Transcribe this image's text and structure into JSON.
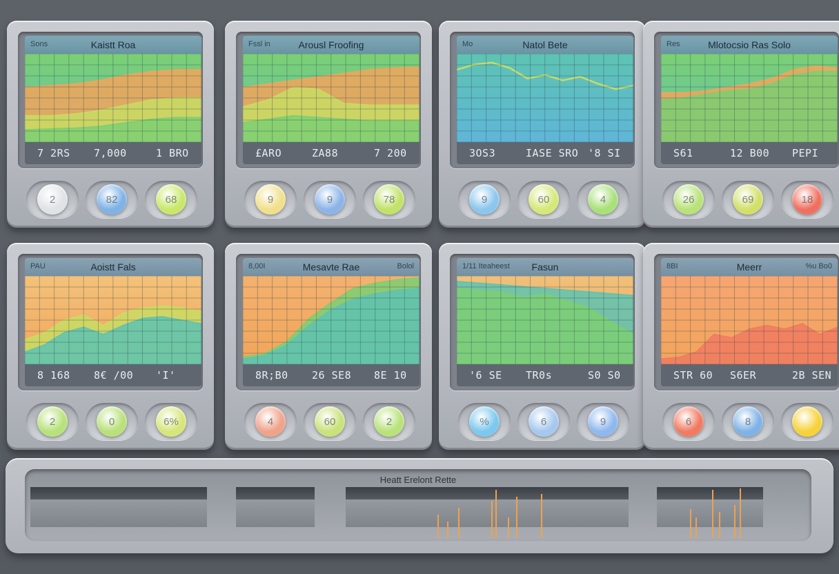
{
  "colors": {
    "orange": "#f2a55a",
    "yellow_green": "#c9dc63",
    "green": "#7ccf73",
    "teal": "#5ec3b2",
    "blue": "#5fb6d7",
    "red": "#f07a60",
    "spike": "#f0a24a"
  },
  "monitors": [
    {
      "header_left": "Sons",
      "title": "Kaistt Roa",
      "header_right": "",
      "readouts": [
        "7 2RS",
        "7,000",
        "1 BRO"
      ],
      "knobs": [
        {
          "label": "2",
          "color": "#dfe3e6"
        },
        {
          "label": "82",
          "color": "#7fb2e6"
        },
        {
          "label": "68",
          "color": "#c9e86a"
        }
      ]
    },
    {
      "header_left": "Fssl in",
      "title": "Arousl Froofing",
      "header_right": "",
      "readouts": [
        "£ARO",
        "ZA88",
        "7 200"
      ],
      "knobs": [
        {
          "label": "9",
          "color": "#f0e08a"
        },
        {
          "label": "9",
          "color": "#8cb4e8"
        },
        {
          "label": "78",
          "color": "#c2e26a"
        }
      ]
    },
    {
      "header_left": "Mo",
      "title": "Natol Bete",
      "header_right": "",
      "readouts": [
        "3OS3",
        "IASE SRO",
        "'8 SI"
      ],
      "knobs": [
        {
          "label": "9",
          "color": "#8cc6ee"
        },
        {
          "label": "60",
          "color": "#d6e87a"
        },
        {
          "label": "4",
          "color": "#a9e07a"
        }
      ]
    },
    {
      "header_left": "Res",
      "title": "Mlotocsio Ras Solo",
      "header_right": "",
      "readouts": [
        "S61",
        "12 B00",
        "PEPI"
      ],
      "knobs": [
        {
          "label": "26",
          "color": "#b9e27a"
        },
        {
          "label": "69",
          "color": "#d2e06a"
        },
        {
          "label": "18",
          "color": "#f07060"
        }
      ]
    },
    {
      "header_left": "PAU",
      "title": "Aoistt Fals",
      "header_right": "",
      "readouts": [
        "8 168",
        "8€ /00",
        "'I'"
      ],
      "knobs": [
        {
          "label": "2",
          "color": "#b7e27a"
        },
        {
          "label": "0",
          "color": "#b9e07a"
        },
        {
          "label": "6%",
          "color": "#d7e67a"
        }
      ]
    },
    {
      "header_left": "8,00I",
      "title": "Mesavte Rae",
      "header_right": "Bolol",
      "readouts": [
        "8R;B0",
        "26 SE8",
        "8E 10"
      ],
      "knobs": [
        {
          "label": "4",
          "color": "#f0a28a"
        },
        {
          "label": "60",
          "color": "#c9e27a"
        },
        {
          "label": "2",
          "color": "#b9e27a"
        }
      ]
    },
    {
      "header_left": "1/11 Iteaheest",
      "title": "Fasun",
      "header_right": "",
      "readouts": [
        "'6 SE",
        "TR0s",
        "S0 S0"
      ],
      "knobs": [
        {
          "label": "%",
          "color": "#7cc8ee"
        },
        {
          "label": "6",
          "color": "#a6c8ee"
        },
        {
          "label": "9",
          "color": "#8fb8ee"
        }
      ]
    },
    {
      "header_left": "8BI",
      "title": "Meerr",
      "header_right": "%u Bo0",
      "readouts": [
        "STR 60",
        "S6ER",
        "2B SEN"
      ],
      "knobs": [
        {
          "label": "6",
          "color": "#f07b62"
        },
        {
          "label": "8",
          "color": "#7fb2e6"
        },
        {
          "label": "",
          "color": "#f6d23a"
        }
      ]
    }
  ],
  "bottom_panel": {
    "title": "Heatt Erelont Rette"
  },
  "chart_data": [
    {
      "type": "area",
      "series": [
        {
          "values": [
            62,
            64,
            66,
            70,
            76,
            80,
            82,
            82
          ]
        },
        {
          "values": [
            30,
            30,
            32,
            36,
            42,
            48,
            50,
            50
          ]
        },
        {
          "values": [
            14,
            15,
            16,
            18,
            22,
            26,
            28,
            28
          ]
        }
      ],
      "ylim": [
        0,
        100
      ]
    },
    {
      "type": "area",
      "series": [
        {
          "values": [
            62,
            66,
            70,
            74,
            78,
            82,
            84,
            85
          ]
        },
        {
          "values": [
            40,
            48,
            62,
            60,
            44,
            42,
            42,
            42
          ]
        },
        {
          "values": [
            22,
            26,
            30,
            28,
            26,
            24,
            24,
            24
          ]
        }
      ],
      "ylim": [
        0,
        100
      ]
    },
    {
      "type": "line",
      "series": [
        {
          "values": [
            82,
            88,
            90,
            84,
            72,
            76,
            70,
            74,
            66,
            60,
            64
          ]
        }
      ],
      "ylim": [
        0,
        100
      ]
    },
    {
      "type": "area",
      "series": [
        {
          "values": [
            56,
            56,
            58,
            62,
            66,
            72,
            82,
            86,
            84
          ]
        },
        {
          "values": [
            48,
            50,
            54,
            58,
            60,
            66,
            76,
            80,
            80
          ]
        }
      ],
      "ylim": [
        0,
        100
      ]
    },
    {
      "type": "area",
      "series": [
        {
          "values": [
            28,
            36,
            50,
            56,
            44,
            58,
            64,
            66,
            64,
            60
          ]
        },
        {
          "values": [
            14,
            22,
            36,
            42,
            34,
            44,
            52,
            54,
            50,
            46
          ]
        }
      ],
      "ylim": [
        0,
        100
      ]
    },
    {
      "type": "area",
      "series": [
        {
          "values": [
            8,
            12,
            26,
            52,
            70,
            86,
            92,
            96,
            98
          ]
        },
        {
          "values": [
            6,
            10,
            22,
            44,
            62,
            74,
            80,
            84,
            86
          ]
        }
      ],
      "ylim": [
        0,
        100
      ]
    },
    {
      "type": "area",
      "series": [
        {
          "values": [
            94,
            92,
            90,
            88,
            86,
            84,
            82,
            80,
            78
          ]
        },
        {
          "values": [
            86,
            84,
            82,
            76,
            80,
            72,
            64,
            48,
            34
          ]
        }
      ],
      "ylim": [
        0,
        100
      ]
    },
    {
      "type": "area",
      "series": [
        {
          "values": [
            6,
            8,
            14,
            34,
            30,
            40,
            44,
            40,
            46,
            34,
            42
          ]
        }
      ],
      "ylim": [
        0,
        100
      ]
    }
  ]
}
